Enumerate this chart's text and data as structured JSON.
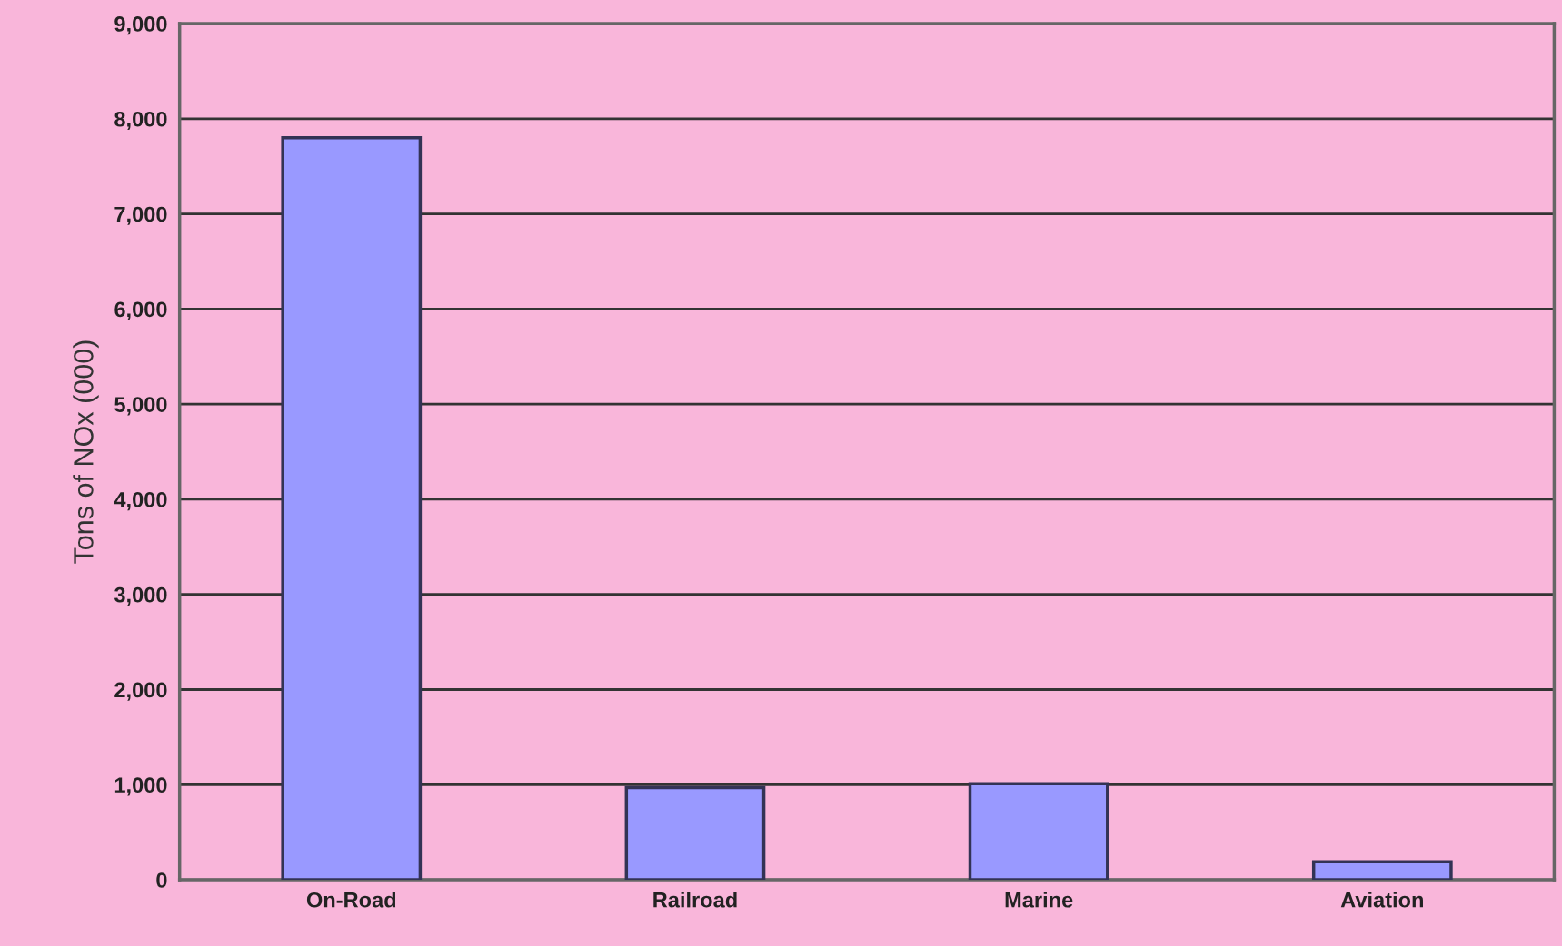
{
  "chart_data": {
    "type": "bar",
    "ylabel": "Tons of NOx (000)",
    "categories": [
      "On-Road",
      "Railroad",
      "Marine",
      "Aviation"
    ],
    "values": [
      7800,
      970,
      1010,
      190
    ],
    "color": "#9999ff",
    "ylim": [
      0,
      9000
    ],
    "yticks": [
      {
        "value": 0,
        "label": "0"
      },
      {
        "value": 1000,
        "label": "1,000"
      },
      {
        "value": 2000,
        "label": "2,000"
      },
      {
        "value": 3000,
        "label": "3,000"
      },
      {
        "value": 4000,
        "label": "4,000"
      },
      {
        "value": 5000,
        "label": "5,000"
      },
      {
        "value": 6000,
        "label": "6,000"
      },
      {
        "value": 7000,
        "label": "7,000"
      },
      {
        "value": 8000,
        "label": "8,000"
      },
      {
        "value": 9000,
        "label": "9,000"
      }
    ],
    "grid": "y",
    "legend": false
  }
}
